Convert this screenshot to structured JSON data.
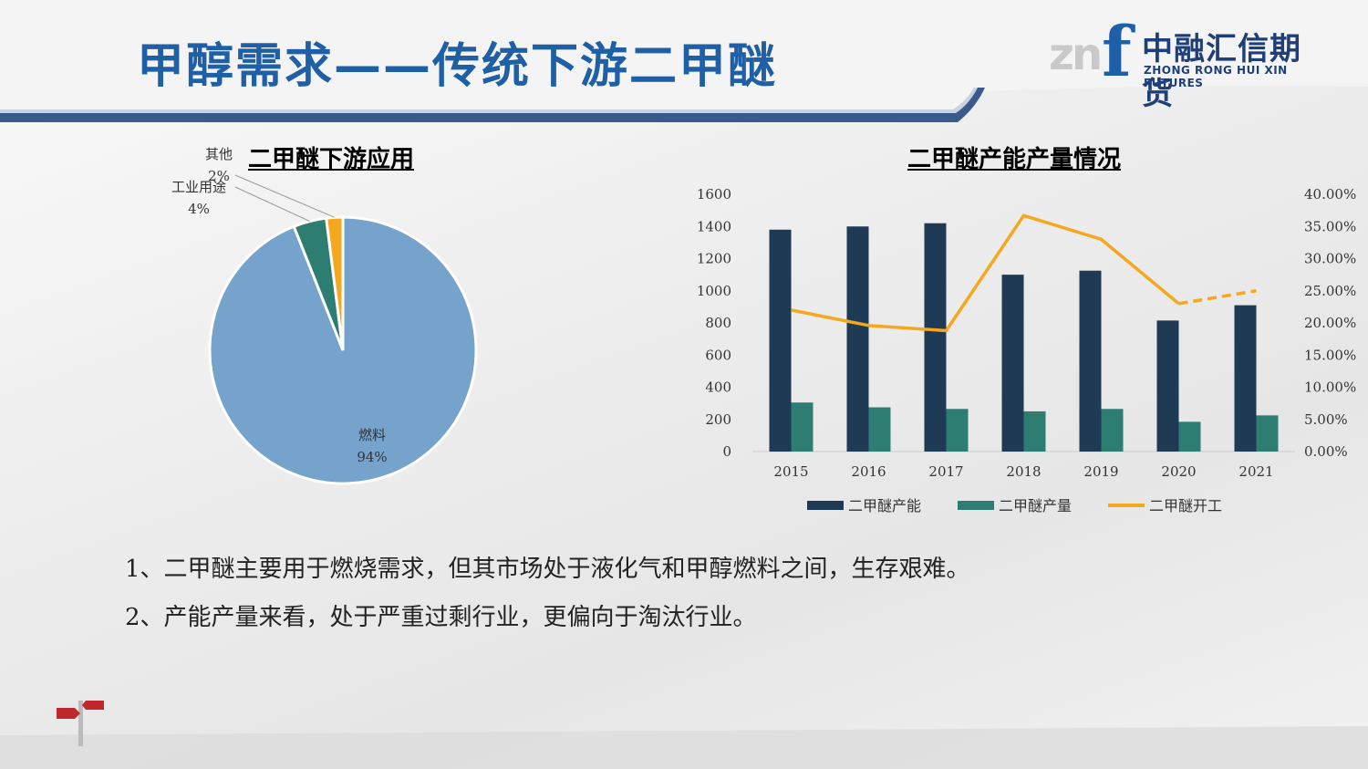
{
  "header": {
    "title": "甲醇需求——传统下游二甲醚",
    "logo_mark": "zn",
    "logo_f": "f",
    "logo_cn": "中融汇信期货",
    "logo_en": "ZHONG RONG HUI XIN FUTURES",
    "accent_color": "#1f5fa6"
  },
  "notes": [
    "1、二甲醚主要用于燃烧需求，但其市场处于液化气和甲醇燃料之间，生存艰难。",
    "2、产能产量来看，处于严重过剩行业，更偏向于淘汰行业。"
  ],
  "chart_data": [
    {
      "type": "pie",
      "title": "二甲醚下游应用",
      "labels": [
        "燃料",
        "工业用途",
        "其他"
      ],
      "values": [
        94,
        4,
        2
      ],
      "value_labels": [
        "94%",
        "4%",
        "2%"
      ],
      "colors": [
        "#76a3cc",
        "#2e7d73",
        "#f5a81e"
      ]
    },
    {
      "type": "bar",
      "title": "二甲醚产能产量情况",
      "categories": [
        "2015",
        "2016",
        "2017",
        "2018",
        "2019",
        "2020",
        "2021"
      ],
      "series": [
        {
          "name": "二甲醚产能",
          "kind": "bar",
          "axis": "left",
          "color": "#1f3a55",
          "values": [
            1380,
            1400,
            1420,
            1100,
            1125,
            815,
            910
          ]
        },
        {
          "name": "二甲醚产量",
          "kind": "bar",
          "axis": "left",
          "color": "#2e7d73",
          "values": [
            305,
            275,
            265,
            250,
            265,
            185,
            225
          ]
        },
        {
          "name": "二甲醚开工",
          "kind": "line",
          "axis": "right",
          "color": "#f5a81e",
          "values": [
            22.0,
            19.6,
            18.8,
            36.7,
            33.0,
            23.0,
            25.0
          ],
          "dashed_from_index": 5
        }
      ],
      "ylim_left": [
        0,
        1600
      ],
      "yticks_left": [
        "0",
        "200",
        "400",
        "600",
        "800",
        "1000",
        "1200",
        "1400",
        "1600"
      ],
      "ylim_right": [
        0,
        40
      ],
      "yticks_right": [
        "0.00%",
        "5.00%",
        "10.00%",
        "15.00%",
        "20.00%",
        "25.00%",
        "30.00%",
        "35.00%",
        "40.00%"
      ],
      "legend_position": "bottom",
      "grid": false
    }
  ]
}
